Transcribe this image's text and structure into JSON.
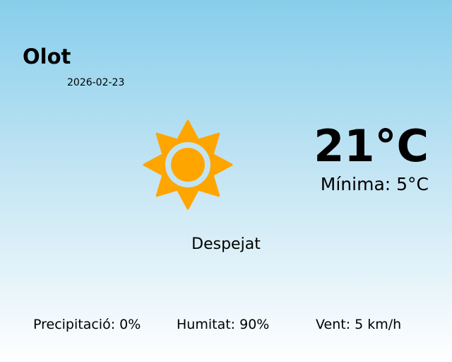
{
  "location": {
    "city": "Olot",
    "date": "2026-02-23"
  },
  "current": {
    "temperature": "21°C",
    "minimum": "Mínima: 5°C",
    "condition": "Despejat",
    "icon": "sun-icon"
  },
  "stats": {
    "precipitation": "Precipitació: 0%",
    "humidity": "Humitat: 90%",
    "wind": "Vent: 5 km/h"
  },
  "colors": {
    "sun": "#ffa500",
    "sky_top": "#87ceeb",
    "sky_bottom": "#ffffff"
  }
}
